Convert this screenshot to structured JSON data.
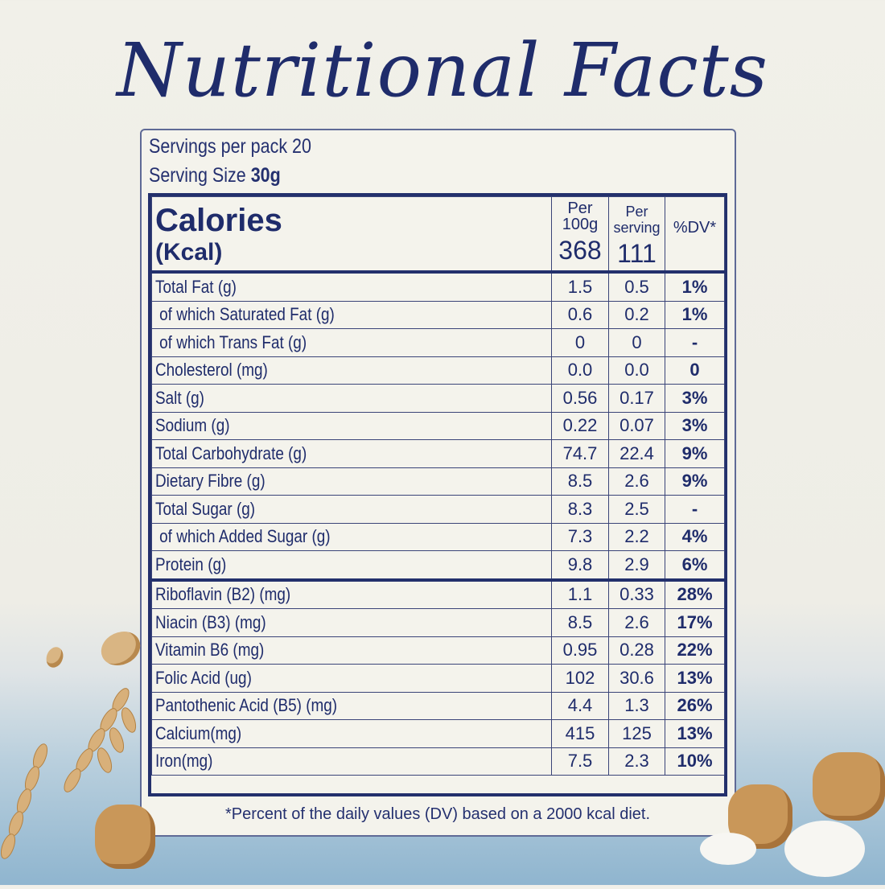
{
  "title": "Nutritional Facts",
  "servings_per_pack": "Servings per pack 20",
  "serving_size_label": "Serving Size",
  "serving_size_value": "30g",
  "header": {
    "calories": "Calories",
    "kcal": "(Kcal)",
    "per100_top": "Per",
    "per100_bottom": "100g",
    "per100_value": "368",
    "perserv_top": "Per",
    "perserv_bottom": "serving",
    "perserv_value": "111",
    "dv": "%DV*"
  },
  "rows": [
    {
      "label": "Total Fat (g)",
      "per100": "1.5",
      "perserv": "0.5",
      "dv": "1%"
    },
    {
      "label": "of which Saturated Fat (g)",
      "per100": "0.6",
      "perserv": "0.2",
      "dv": "1%"
    },
    {
      "label": "of which Trans Fat (g)",
      "per100": "0",
      "perserv": "0",
      "dv": "-"
    },
    {
      "label": "Cholesterol (mg)",
      "per100": "0.0",
      "perserv": "0.0",
      "dv": "0"
    },
    {
      "label": "Salt (g)",
      "per100": "0.56",
      "perserv": "0.17",
      "dv": "3%"
    },
    {
      "label": "Sodium (g)",
      "per100": "0.22",
      "perserv": "0.07",
      "dv": "3%"
    },
    {
      "label": "Total Carbohydrate (g)",
      "per100": "74.7",
      "perserv": "22.4",
      "dv": "9%"
    },
    {
      "label": "Dietary Fibre (g)",
      "per100": "8.5",
      "perserv": "2.6",
      "dv": "9%"
    },
    {
      "label": "Total Sugar (g)",
      "per100": "8.3",
      "perserv": "2.5",
      "dv": "-"
    },
    {
      "label": "of which Added Sugar (g)",
      "per100": "7.3",
      "perserv": "2.2",
      "dv": "4%"
    },
    {
      "label": "Protein (g)",
      "per100": "9.8",
      "perserv": "2.9",
      "dv": "6%"
    },
    {
      "label": "Riboflavin (B2) (mg)",
      "per100": "1.1",
      "perserv": "0.33",
      "dv": "28%"
    },
    {
      "label": "Niacin (B3) (mg)",
      "per100": "8.5",
      "perserv": "2.6",
      "dv": "17%"
    },
    {
      "label": "Vitamin B6 (mg)",
      "per100": "0.95",
      "perserv": "0.28",
      "dv": "22%"
    },
    {
      "label": "Folic Acid (ug)",
      "per100": "102",
      "perserv": "30.6",
      "dv": "13%"
    },
    {
      "label": "Pantothenic Acid (B5) (mg)",
      "per100": "4.4",
      "perserv": "1.3",
      "dv": "26%"
    },
    {
      "label": "Calcium(mg)",
      "per100": "415",
      "perserv": "125",
      "dv": "13%"
    },
    {
      "label": "Iron(mg)",
      "per100": "7.5",
      "perserv": "2.3",
      "dv": "10%"
    }
  ],
  "footnote": "*Percent of the daily values (DV) based on a 2000 kcal diet.",
  "colors": {
    "ink": "#1f2c6b",
    "paper": "#f1f0e9",
    "sky": "#8fb5cf"
  }
}
